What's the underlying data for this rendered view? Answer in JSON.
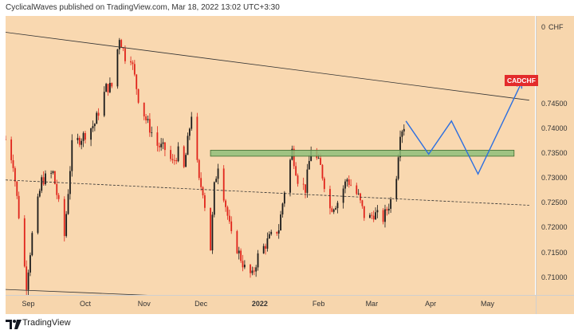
{
  "header": {
    "text": "CyclicalWaves published on TradingView.com, Mar 18, 2022 13:02 UTC+3:30"
  },
  "symbol": "CADCHF",
  "currency": "CHF",
  "footer": {
    "brand": "TradingView"
  },
  "colors": {
    "background": "#f9d8b0",
    "candle_up": "#1a1a1a",
    "candle_down": "#e0241b",
    "zone_fill": "#8fbf7a",
    "projection": "#2c6fe0",
    "trendline": "#333333",
    "badge": "#e32b2b"
  },
  "chart_data": {
    "type": "candlestick",
    "x_range": [
      "2021-08-20",
      "2022-05-26"
    ],
    "x_tick_labels": [
      "Sep",
      "Oct",
      "Nov",
      "Dec",
      "2022",
      "Feb",
      "Mar",
      "Apr",
      "May"
    ],
    "y_range": [
      0.7064,
      0.7627
    ],
    "y_tick_labels": [
      "0",
      "0.74500",
      "0.74000",
      "0.73500",
      "0.73000",
      "0.72500",
      "0.72000",
      "0.71500",
      "0.71000"
    ],
    "close_path": [
      [
        "2021-08-20",
        0.7378
      ],
      [
        "2021-08-24",
        0.733
      ],
      [
        "2021-08-31",
        0.7085
      ],
      [
        "2021-09-03",
        0.7185
      ],
      [
        "2021-09-08",
        0.7295
      ],
      [
        "2021-09-14",
        0.731
      ],
      [
        "2021-09-20",
        0.7183
      ],
      [
        "2021-09-24",
        0.7365
      ],
      [
        "2021-09-30",
        0.7385
      ],
      [
        "2021-10-06",
        0.741
      ],
      [
        "2021-10-12",
        0.7482
      ],
      [
        "2021-10-15",
        0.7485
      ],
      [
        "2021-10-19",
        0.7585
      ],
      [
        "2021-10-22",
        0.7545
      ],
      [
        "2021-10-25",
        0.7545
      ],
      [
        "2021-10-29",
        0.7462
      ],
      [
        "2021-11-02",
        0.7418
      ],
      [
        "2021-11-08",
        0.7366
      ],
      [
        "2021-11-12",
        0.7358
      ],
      [
        "2021-11-16",
        0.733
      ],
      [
        "2021-11-19",
        0.7352
      ],
      [
        "2021-11-22",
        0.7318
      ],
      [
        "2021-11-26",
        0.743
      ],
      [
        "2021-11-30",
        0.7292
      ],
      [
        "2021-12-02",
        0.7275
      ],
      [
        "2021-12-06",
        0.7158
      ],
      [
        "2021-12-08",
        0.7282
      ],
      [
        "2021-12-10",
        0.7328
      ],
      [
        "2021-12-14",
        0.7245
      ],
      [
        "2021-12-17",
        0.7182
      ],
      [
        "2021-12-20",
        0.7158
      ],
      [
        "2021-12-24",
        0.7118
      ],
      [
        "2021-12-28",
        0.7102
      ],
      [
        "2021-12-31",
        0.7142
      ],
      [
        "2022-01-06",
        0.7178
      ],
      [
        "2022-01-11",
        0.7198
      ],
      [
        "2022-01-14",
        0.7275
      ],
      [
        "2022-01-18",
        0.7355
      ],
      [
        "2022-01-21",
        0.7298
      ],
      [
        "2022-01-25",
        0.7278
      ],
      [
        "2022-01-28",
        0.736
      ],
      [
        "2022-02-02",
        0.7322
      ],
      [
        "2022-02-07",
        0.7238
      ],
      [
        "2022-02-11",
        0.7252
      ],
      [
        "2022-02-16",
        0.7298
      ],
      [
        "2022-02-22",
        0.7262
      ],
      [
        "2022-02-26",
        0.7212
      ],
      [
        "2022-03-02",
        0.7228
      ],
      [
        "2022-03-07",
        0.7218
      ],
      [
        "2022-03-11",
        0.7255
      ],
      [
        "2022-03-14",
        0.7308
      ],
      [
        "2022-03-16",
        0.7395
      ],
      [
        "2022-03-18",
        0.7405
      ]
    ],
    "support_zone": {
      "from": "2021-12-06",
      "to": "2022-05-15",
      "low": 0.7344,
      "high": 0.7356
    },
    "projection_path": [
      [
        "2022-03-19",
        0.7415
      ],
      [
        "2022-03-31",
        0.7348
      ],
      [
        "2022-04-12",
        0.7415
      ],
      [
        "2022-04-26",
        0.7308
      ],
      [
        "2022-05-19",
        0.7493
      ]
    ],
    "upper_channel": [
      [
        "2021-08-20",
        0.7594
      ],
      [
        "2022-05-23",
        0.7457
      ]
    ],
    "lower_channel": [
      [
        "2021-08-20",
        0.7075
      ],
      [
        "2021-12-01",
        0.7059
      ]
    ],
    "mid_channel": [
      [
        "2021-08-20",
        0.7296
      ],
      [
        "2022-05-23",
        0.7245
      ]
    ]
  }
}
